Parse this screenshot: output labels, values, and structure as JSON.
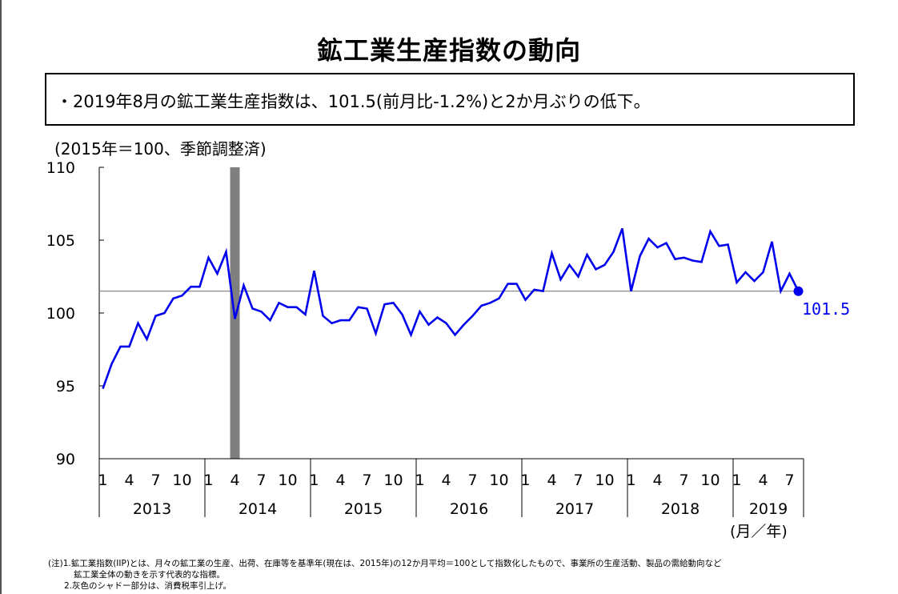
{
  "title": "鉱工業生産指数の動向",
  "summary": "・2019年8月の鉱工業生産指数は、101.5(前月比-1.2%)と2か月ぶりの低下。",
  "unit_note": "(2015年＝100、季節調整済)",
  "x_unit": "(月／年)",
  "footnotes": [
    "(注)1.鉱工業指数(IIP)とは、月々の鉱工業の生産、出荷、在庫等を基準年(現在は、2015年)の12か月平均＝100として指数化したもので、事業所の生産活動、製品の需給動向など",
    "鉱工業全体の動きを示す代表的な指標。",
    "2.灰色のシャドー部分は、消費税率引上げ。"
  ],
  "colors": {
    "line": "#0000ee",
    "shade": "#7f7f7f",
    "refline": "#7f7f7f",
    "axis": "#000000"
  },
  "chart_data": {
    "type": "line",
    "ylim": [
      90,
      110
    ],
    "yticks": [
      90,
      95,
      100,
      105,
      110
    ],
    "month_tick_labels": [
      "1",
      "4",
      "7",
      "10"
    ],
    "years": [
      "2013",
      "2014",
      "2015",
      "2016",
      "2017",
      "2018",
      "2019"
    ],
    "start": "2013-01",
    "end": "2019-08",
    "reference_line": 101.5,
    "shade_period": "2014-04",
    "end_label": "101.5",
    "series": [
      {
        "values": [
          94.8,
          96.5,
          97.7,
          97.7,
          99.3,
          98.2,
          99.8,
          100.0,
          101.0,
          101.2,
          101.8,
          101.8,
          103.8,
          102.7,
          104.2,
          99.6,
          101.9,
          100.3,
          100.1,
          99.5,
          100.7,
          100.4,
          100.4,
          99.9,
          102.9,
          99.8,
          99.3,
          99.5,
          99.5,
          100.4,
          100.3,
          98.6,
          100.6,
          100.7,
          99.9,
          98.5,
          100.1,
          99.2,
          99.7,
          99.3,
          98.5,
          99.2,
          99.8,
          100.5,
          100.7,
          101.0,
          102.0,
          102.0,
          100.9,
          101.6,
          101.5,
          104.1,
          102.3,
          103.3,
          102.5,
          104.0,
          103.0,
          103.3,
          104.2,
          105.8,
          101.5,
          103.9,
          105.1,
          104.5,
          104.8,
          103.7,
          103.8,
          103.6,
          103.5,
          105.6,
          104.6,
          104.7,
          102.1,
          102.8,
          102.2,
          102.8,
          104.9,
          101.5,
          102.7,
          101.5
        ]
      }
    ]
  }
}
